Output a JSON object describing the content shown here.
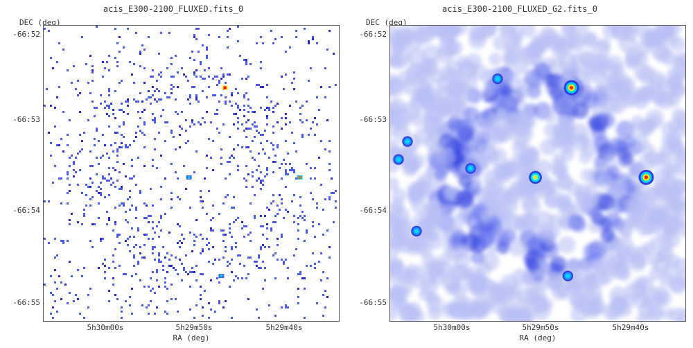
{
  "panels": [
    {
      "title": "acis_E300-2100_FLUXED.fits_0",
      "ylabel": "DEC (deg)",
      "xlabel": "RA (deg)",
      "yticks": [
        "-66:52",
        "-66:53",
        "-66:54",
        "-66:55"
      ],
      "xticks": [
        "5h30m00s",
        "5h29m50s",
        "5h29m40s"
      ]
    },
    {
      "title": "acis_E300-2100_FLUXED_G2.fits_0",
      "ylabel": "DEC (deg)",
      "xlabel": "RA (deg)",
      "yticks": [
        "-66:52",
        "-66:53",
        "-66:54",
        "-66:55"
      ],
      "xticks": [
        "5h30m00s",
        "5h29m50s",
        "5h29m40s"
      ]
    }
  ],
  "chart_data": [
    {
      "type": "heatmap",
      "title": "acis_E300-2100_FLUXED.fits_0",
      "xlabel": "RA (deg)",
      "ylabel": "DEC (deg)",
      "x_ticks": [
        "5h30m00s",
        "5h29m50s",
        "5h29m40s"
      ],
      "y_ticks": [
        "-66:52",
        "-66:53",
        "-66:54",
        "-66:55"
      ],
      "colormap": [
        "#ffffff",
        "#4a5cf0",
        "#2a2ad0",
        "#00c8ff",
        "#ffe600",
        "#ff0000"
      ],
      "description_pattern": "sparse blue speckle pixels, denser in a ring, with bright points near (-66:52.6, 5h29m47s), (-66:53.6, 5h29m39s), (-66:53.6, 5h29m51s), (-66:54.7, 5h29m47s)",
      "bright_sources": [
        {
          "ra": "5h29m46.8s",
          "dec": "-66:52.6",
          "level": "high"
        },
        {
          "ra": "5h29m38.5s",
          "dec": "-66:53.6",
          "level": "medium"
        },
        {
          "ra": "5h29m50.8s",
          "dec": "-66:53.6",
          "level": "low"
        },
        {
          "ra": "5h29m47.2s",
          "dec": "-66:54.7",
          "level": "low"
        }
      ]
    },
    {
      "type": "heatmap",
      "title": "acis_E300-2100_FLUXED_G2.fits_0",
      "xlabel": "RA (deg)",
      "ylabel": "DEC (deg)",
      "x_ticks": [
        "5h30m00s",
        "5h29m50s",
        "5h29m40s"
      ],
      "y_ticks": [
        "-66:52",
        "-66:53",
        "-66:54",
        "-66:55"
      ],
      "colormap": [
        "#ffffff",
        "#b8c0f4",
        "#6f7cef",
        "#2f3fe0",
        "#00d4ff",
        "#ffe600",
        "#ff2000"
      ],
      "bright_sources": [
        {
          "ra": "5h29m46.8s",
          "dec": "-66:52.6",
          "level": "high"
        },
        {
          "ra": "5h29m38.5s",
          "dec": "-66:53.6",
          "level": "high"
        },
        {
          "ra": "5h29m50.8s",
          "dec": "-66:53.6",
          "level": "medium"
        },
        {
          "ra": "5h29m47.2s",
          "dec": "-66:54.7",
          "level": "low"
        },
        {
          "ra": "5h29m55.0s",
          "dec": "-66:52.5",
          "level": "low"
        },
        {
          "ra": "5h30m05.0s",
          "dec": "-66:53.2",
          "level": "low"
        },
        {
          "ra": "5h30m06.0s",
          "dec": "-66:53.4",
          "level": "low"
        },
        {
          "ra": "5h30m04.0s",
          "dec": "-66:54.2",
          "level": "low"
        },
        {
          "ra": "5h29m58.0s",
          "dec": "-66:53.5",
          "level": "low"
        }
      ]
    }
  ]
}
